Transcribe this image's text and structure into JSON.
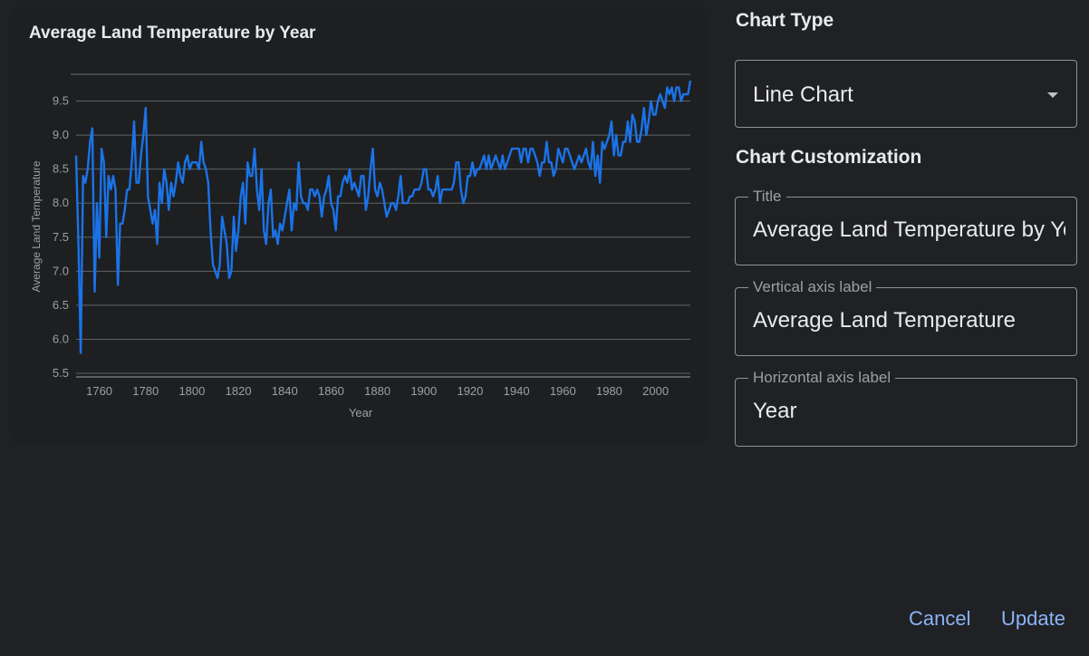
{
  "chart_data": {
    "type": "line",
    "title": "Average Land Temperature by Year",
    "xlabel": "Year",
    "ylabel": "Average Land Temperature",
    "xlim": [
      1750,
      2015
    ],
    "ylim": [
      5.5,
      10
    ],
    "x_ticks": [
      "1760",
      "1780",
      "1800",
      "1820",
      "1840",
      "1860",
      "1880",
      "1900",
      "1920",
      "1940",
      "1960",
      "1980",
      "2000"
    ],
    "y_ticks": [
      "5.5",
      "6.0",
      "6.5",
      "7.0",
      "7.5",
      "8.0",
      "8.5",
      "9.0",
      "9.5"
    ],
    "grid": true,
    "line_color": "#1a73e8",
    "series": [
      {
        "points": [
          [
            1750,
            8.7
          ],
          [
            1751,
            7.4
          ],
          [
            1752,
            5.8
          ],
          [
            1753,
            8.4
          ],
          [
            1754,
            8.3
          ],
          [
            1755,
            8.5
          ],
          [
            1756,
            8.9
          ],
          [
            1757,
            9.1
          ],
          [
            1758,
            6.7
          ],
          [
            1759,
            8.0
          ],
          [
            1760,
            7.2
          ],
          [
            1761,
            8.8
          ],
          [
            1762,
            8.6
          ],
          [
            1763,
            7.5
          ],
          [
            1764,
            8.4
          ],
          [
            1765,
            8.2
          ],
          [
            1766,
            8.4
          ],
          [
            1767,
            8.2
          ],
          [
            1768,
            6.8
          ],
          [
            1769,
            7.7
          ],
          [
            1770,
            7.7
          ],
          [
            1771,
            7.9
          ],
          [
            1772,
            8.2
          ],
          [
            1773,
            8.2
          ],
          [
            1774,
            8.6
          ],
          [
            1775,
            9.2
          ],
          [
            1776,
            8.3
          ],
          [
            1777,
            8.3
          ],
          [
            1778,
            8.7
          ],
          [
            1779,
            9.0
          ],
          [
            1780,
            9.4
          ],
          [
            1781,
            8.1
          ],
          [
            1782,
            7.9
          ],
          [
            1783,
            7.7
          ],
          [
            1784,
            7.9
          ],
          [
            1785,
            7.4
          ],
          [
            1786,
            8.3
          ],
          [
            1787,
            8.0
          ],
          [
            1788,
            8.5
          ],
          [
            1789,
            8.3
          ],
          [
            1790,
            7.9
          ],
          [
            1791,
            8.3
          ],
          [
            1792,
            8.1
          ],
          [
            1793,
            8.3
          ],
          [
            1794,
            8.6
          ],
          [
            1795,
            8.4
          ],
          [
            1796,
            8.3
          ],
          [
            1797,
            8.6
          ],
          [
            1798,
            8.7
          ],
          [
            1799,
            8.5
          ],
          [
            1800,
            8.6
          ],
          [
            1801,
            8.6
          ],
          [
            1802,
            8.6
          ],
          [
            1803,
            8.5
          ],
          [
            1804,
            8.9
          ],
          [
            1805,
            8.6
          ],
          [
            1806,
            8.5
          ],
          [
            1807,
            8.3
          ],
          [
            1808,
            7.6
          ],
          [
            1809,
            7.1
          ],
          [
            1810,
            7.0
          ],
          [
            1811,
            6.9
          ],
          [
            1812,
            7.1
          ],
          [
            1813,
            7.8
          ],
          [
            1814,
            7.6
          ],
          [
            1815,
            7.4
          ],
          [
            1816,
            6.9
          ],
          [
            1817,
            7.0
          ],
          [
            1818,
            7.8
          ],
          [
            1819,
            7.3
          ],
          [
            1820,
            7.6
          ],
          [
            1821,
            8.1
          ],
          [
            1822,
            8.3
          ],
          [
            1823,
            7.7
          ],
          [
            1824,
            8.6
          ],
          [
            1825,
            8.4
          ],
          [
            1826,
            8.4
          ],
          [
            1827,
            8.8
          ],
          [
            1828,
            8.2
          ],
          [
            1829,
            7.9
          ],
          [
            1830,
            8.5
          ],
          [
            1831,
            7.6
          ],
          [
            1832,
            7.4
          ],
          [
            1833,
            8.0
          ],
          [
            1834,
            8.2
          ],
          [
            1835,
            7.5
          ],
          [
            1836,
            7.6
          ],
          [
            1837,
            7.4
          ],
          [
            1838,
            7.7
          ],
          [
            1839,
            7.6
          ],
          [
            1840,
            7.8
          ],
          [
            1841,
            8.0
          ],
          [
            1842,
            8.2
          ],
          [
            1843,
            7.6
          ],
          [
            1844,
            8.0
          ],
          [
            1845,
            7.9
          ],
          [
            1846,
            8.6
          ],
          [
            1847,
            8.1
          ],
          [
            1848,
            8.0
          ],
          [
            1849,
            8.0
          ],
          [
            1850,
            7.9
          ],
          [
            1851,
            8.2
          ],
          [
            1852,
            8.2
          ],
          [
            1853,
            8.1
          ],
          [
            1854,
            8.2
          ],
          [
            1855,
            8.1
          ],
          [
            1856,
            7.8
          ],
          [
            1857,
            8.1
          ],
          [
            1858,
            8.2
          ],
          [
            1859,
            8.4
          ],
          [
            1860,
            8.0
          ],
          [
            1861,
            7.9
          ],
          [
            1862,
            7.6
          ],
          [
            1863,
            8.1
          ],
          [
            1864,
            8.1
          ],
          [
            1865,
            8.3
          ],
          [
            1866,
            8.4
          ],
          [
            1867,
            8.3
          ],
          [
            1868,
            8.5
          ],
          [
            1869,
            8.2
          ],
          [
            1870,
            8.3
          ],
          [
            1871,
            8.2
          ],
          [
            1872,
            8.1
          ],
          [
            1873,
            8.4
          ],
          [
            1874,
            8.4
          ],
          [
            1875,
            7.9
          ],
          [
            1876,
            8.1
          ],
          [
            1877,
            8.5
          ],
          [
            1878,
            8.8
          ],
          [
            1879,
            8.2
          ],
          [
            1880,
            8.1
          ],
          [
            1881,
            8.3
          ],
          [
            1882,
            8.2
          ],
          [
            1883,
            8.0
          ],
          [
            1884,
            7.8
          ],
          [
            1885,
            7.9
          ],
          [
            1886,
            8.0
          ],
          [
            1887,
            8.0
          ],
          [
            1888,
            7.9
          ],
          [
            1889,
            8.1
          ],
          [
            1890,
            8.4
          ],
          [
            1891,
            8.0
          ],
          [
            1892,
            8.0
          ],
          [
            1893,
            8.0
          ],
          [
            1894,
            8.1
          ],
          [
            1895,
            8.1
          ],
          [
            1896,
            8.2
          ],
          [
            1897,
            8.2
          ],
          [
            1898,
            8.2
          ],
          [
            1899,
            8.3
          ],
          [
            1900,
            8.5
          ],
          [
            1901,
            8.5
          ],
          [
            1902,
            8.2
          ],
          [
            1903,
            8.2
          ],
          [
            1904,
            8.1
          ],
          [
            1905,
            8.2
          ],
          [
            1906,
            8.4
          ],
          [
            1907,
            8.0
          ],
          [
            1908,
            8.2
          ],
          [
            1909,
            8.2
          ],
          [
            1910,
            8.2
          ],
          [
            1911,
            8.2
          ],
          [
            1912,
            8.2
          ],
          [
            1913,
            8.3
          ],
          [
            1914,
            8.6
          ],
          [
            1915,
            8.6
          ],
          [
            1916,
            8.2
          ],
          [
            1917,
            8.0
          ],
          [
            1918,
            8.1
          ],
          [
            1919,
            8.4
          ],
          [
            1920,
            8.4
          ],
          [
            1921,
            8.6
          ],
          [
            1922,
            8.4
          ],
          [
            1923,
            8.5
          ],
          [
            1924,
            8.5
          ],
          [
            1925,
            8.6
          ],
          [
            1926,
            8.7
          ],
          [
            1927,
            8.5
          ],
          [
            1928,
            8.7
          ],
          [
            1929,
            8.5
          ],
          [
            1930,
            8.6
          ],
          [
            1931,
            8.7
          ],
          [
            1932,
            8.6
          ],
          [
            1933,
            8.5
          ],
          [
            1934,
            8.7
          ],
          [
            1935,
            8.5
          ],
          [
            1936,
            8.6
          ],
          [
            1937,
            8.7
          ],
          [
            1938,
            8.8
          ],
          [
            1939,
            8.8
          ],
          [
            1940,
            8.8
          ],
          [
            1941,
            8.8
          ],
          [
            1942,
            8.6
          ],
          [
            1943,
            8.8
          ],
          [
            1944,
            8.8
          ],
          [
            1945,
            8.6
          ],
          [
            1946,
            8.8
          ],
          [
            1947,
            8.8
          ],
          [
            1948,
            8.7
          ],
          [
            1949,
            8.6
          ],
          [
            1950,
            8.4
          ],
          [
            1951,
            8.6
          ],
          [
            1952,
            8.6
          ],
          [
            1953,
            8.9
          ],
          [
            1954,
            8.6
          ],
          [
            1955,
            8.6
          ],
          [
            1956,
            8.4
          ],
          [
            1957,
            8.5
          ],
          [
            1958,
            8.8
          ],
          [
            1959,
            8.7
          ],
          [
            1960,
            8.6
          ],
          [
            1961,
            8.8
          ],
          [
            1962,
            8.8
          ],
          [
            1963,
            8.7
          ],
          [
            1964,
            8.6
          ],
          [
            1965,
            8.5
          ],
          [
            1966,
            8.6
          ],
          [
            1967,
            8.7
          ],
          [
            1968,
            8.6
          ],
          [
            1969,
            8.7
          ],
          [
            1970,
            8.8
          ],
          [
            1971,
            8.6
          ],
          [
            1972,
            8.5
          ],
          [
            1973,
            8.9
          ],
          [
            1974,
            8.4
          ],
          [
            1975,
            8.7
          ],
          [
            1976,
            8.3
          ],
          [
            1977,
            8.9
          ],
          [
            1978,
            8.8
          ],
          [
            1979,
            8.9
          ],
          [
            1980,
            9.0
          ],
          [
            1981,
            9.2
          ],
          [
            1982,
            8.7
          ],
          [
            1983,
            9.0
          ],
          [
            1984,
            8.7
          ],
          [
            1985,
            8.7
          ],
          [
            1986,
            8.9
          ],
          [
            1987,
            8.9
          ],
          [
            1988,
            9.2
          ],
          [
            1989,
            8.9
          ],
          [
            1990,
            9.3
          ],
          [
            1991,
            9.2
          ],
          [
            1992,
            8.9
          ],
          [
            1993,
            8.9
          ],
          [
            1994,
            9.1
          ],
          [
            1995,
            9.4
          ],
          [
            1996,
            9.0
          ],
          [
            1997,
            9.2
          ],
          [
            1998,
            9.5
          ],
          [
            1999,
            9.3
          ],
          [
            2000,
            9.3
          ],
          [
            2001,
            9.5
          ],
          [
            2002,
            9.6
          ],
          [
            2003,
            9.5
          ],
          [
            2004,
            9.4
          ],
          [
            2005,
            9.7
          ],
          [
            2006,
            9.6
          ],
          [
            2007,
            9.7
          ],
          [
            2008,
            9.5
          ],
          [
            2009,
            9.7
          ],
          [
            2010,
            9.7
          ],
          [
            2011,
            9.5
          ],
          [
            2012,
            9.6
          ],
          [
            2013,
            9.6
          ],
          [
            2014,
            9.6
          ],
          [
            2015,
            9.8
          ]
        ]
      }
    ]
  },
  "panel": {
    "chart_type_heading": "Chart Type",
    "chart_type_value": "Line Chart",
    "customization_heading": "Chart Customization",
    "fields": {
      "title_label": "Title",
      "title_value": "Average Land Temperature by Year",
      "vaxis_label": "Vertical axis label",
      "vaxis_value": "Average Land Temperature",
      "haxis_label": "Horizontal axis label",
      "haxis_value": "Year"
    }
  },
  "actions": {
    "cancel": "Cancel",
    "update": "Update"
  },
  "icons": {
    "select_caret": "dropdown-caret-icon"
  }
}
